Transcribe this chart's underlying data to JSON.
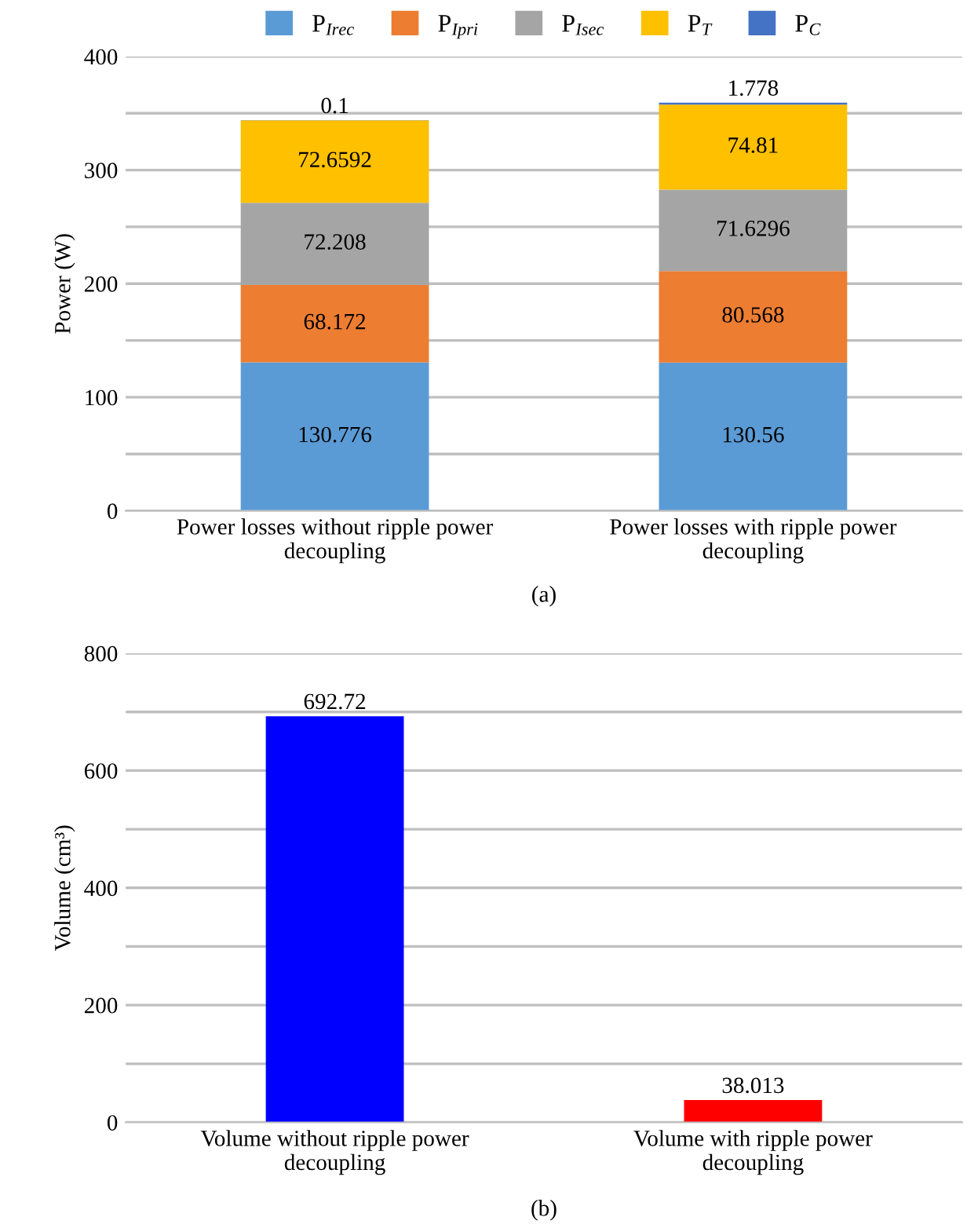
{
  "chart_data": [
    {
      "type": "bar",
      "stacked": true,
      "ylabel": "Power (W)",
      "categories": [
        "Power losses without ripple power decoupling",
        "Power losses with ripple power decoupling"
      ],
      "series": [
        {
          "name": "P$_{Irec}$",
          "color": "#5b9bd5",
          "values": [
            130.776,
            130.56
          ]
        },
        {
          "name": "P$_{Ipri}$",
          "color": "#ed7d31",
          "values": [
            68.172,
            80.568
          ]
        },
        {
          "name": "P$_{Isec}$",
          "color": "#a5a5a5",
          "values": [
            72.208,
            71.6296
          ]
        },
        {
          "name": "P$_{T}$",
          "color": "#ffc000",
          "values": [
            72.6592,
            74.81
          ]
        },
        {
          "name": "P$_{C}$",
          "color": "#4472c4",
          "values": [
            0.1,
            1.778
          ]
        }
      ],
      "ylim": [
        0,
        400
      ],
      "yticks": [
        0,
        {
          "value": 50,
          "label": null
        },
        100,
        {
          "value": 150,
          "label": null
        },
        200,
        {
          "value": 250,
          "label": null
        },
        300,
        {
          "value": 350,
          "label": null
        },
        400
      ],
      "grid": "y",
      "legend": "top",
      "data_labels": true,
      "annotations": [
        "(a)"
      ]
    },
    {
      "type": "bar",
      "ylabel": "Volume (cm³)",
      "categories": [
        "Volume without ripple power decoupling",
        "Volume with ripple power decoupling"
      ],
      "values": [
        692.72,
        38.013
      ],
      "colors": [
        "#0000ff",
        "#ff0000"
      ],
      "ylim": [
        0,
        800
      ],
      "yticks": [
        0,
        {
          "value": 100,
          "label": null
        },
        200,
        {
          "value": 300,
          "label": null
        },
        400,
        {
          "value": 500,
          "label": null
        },
        600,
        {
          "value": 700,
          "label": null
        },
        800
      ],
      "grid": "y",
      "data_labels": true,
      "annotations": [
        "(b)"
      ]
    }
  ]
}
